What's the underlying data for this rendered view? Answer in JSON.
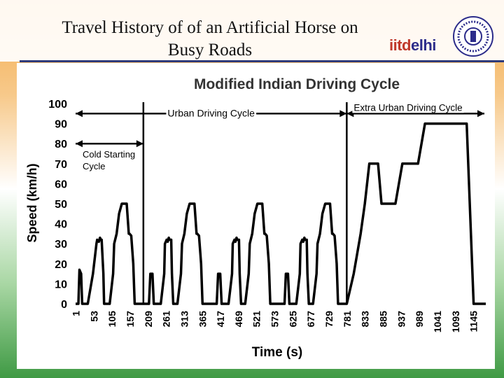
{
  "slide": {
    "title_line1": "Travel History of  of an Artificial Horse on",
    "title_line2": "Busy Roads",
    "logo_part1": "iitd",
    "logo_part2": "elhi"
  },
  "colors": {
    "accent": "#2e3a7a",
    "logo_red": "#c0392b",
    "logo_blue": "#2c2c8a",
    "trace": "#000000"
  },
  "chart_data": {
    "type": "line",
    "title": "Modified Indian Driving Cycle",
    "xlabel": "Time (s)",
    "ylabel": "Speed (km/h)",
    "ylim": [
      0,
      100
    ],
    "xlim": [
      0,
      1180
    ],
    "yticks": [
      0,
      10,
      20,
      30,
      40,
      50,
      60,
      70,
      80,
      90,
      100
    ],
    "xticks": [
      1,
      53,
      105,
      157,
      209,
      261,
      313,
      365,
      417,
      469,
      521,
      573,
      625,
      677,
      729,
      781,
      833,
      885,
      937,
      989,
      1041,
      1093,
      1145
    ],
    "grid": false,
    "annotations": {
      "urban": "Urban Driving Cycle",
      "extra_urban": "Extra Urban Driving Cycle",
      "cold": "Cold Starting",
      "cold2": "Cycle"
    },
    "markers": {
      "urban_start": 0,
      "urban_end": 780,
      "cold_end": 195,
      "extra_end": 1180
    },
    "series": [
      {
        "x": [
          0,
          8,
          11,
          16,
          19,
          23,
          35,
          50,
          60,
          62,
          67,
          70,
          73,
          75,
          80,
          82,
          86,
          98,
          108,
          111,
          118,
          125,
          133,
          140,
          147,
          153,
          155,
          160,
          166,
          170,
          178,
          182,
          190,
          195,
          205,
          211,
          215,
          221,
          225,
          245,
          255,
          257,
          262,
          265,
          268,
          270,
          275,
          277,
          281,
          293,
          303,
          306,
          313,
          320,
          328,
          335,
          342,
          348,
          350,
          355,
          361,
          365,
          373,
          377,
          385,
          390,
          400,
          406,
          410,
          416,
          420,
          440,
          450,
          452,
          457,
          460,
          463,
          465,
          470,
          472,
          476,
          488,
          498,
          501,
          508,
          515,
          523,
          530,
          537,
          543,
          545,
          550,
          556,
          560,
          568,
          572,
          580,
          585,
          595,
          601,
          605,
          611,
          615,
          635,
          645,
          647,
          652,
          655,
          658,
          660,
          665,
          667,
          671,
          683,
          693,
          696,
          703,
          710,
          718,
          725,
          732,
          738,
          740,
          745,
          751,
          755,
          763,
          767,
          775,
          780,
          800,
          820,
          832,
          845,
          855,
          870,
          880,
          900,
          920,
          940,
          950,
          960,
          975,
          985,
          1005,
          1020,
          1030,
          1045,
          1055,
          1080,
          1095,
          1110,
          1125,
          1145,
          1165,
          1180
        ],
        "y": [
          0,
          0,
          17,
          15,
          0,
          0,
          0,
          15,
          30,
          32,
          31,
          33,
          32,
          32,
          15,
          0,
          0,
          0,
          15,
          30,
          35,
          45,
          50,
          50,
          50,
          35,
          35,
          34,
          20,
          0,
          0,
          0,
          0,
          0,
          0,
          0,
          15,
          15,
          0,
          0,
          15,
          30,
          32,
          31,
          33,
          32,
          32,
          15,
          0,
          0,
          15,
          30,
          35,
          45,
          50,
          50,
          50,
          35,
          35,
          34,
          20,
          0,
          0,
          0,
          0,
          0,
          0,
          0,
          15,
          15,
          0,
          0,
          15,
          30,
          32,
          31,
          33,
          32,
          32,
          15,
          0,
          0,
          15,
          30,
          35,
          45,
          50,
          50,
          50,
          35,
          35,
          34,
          20,
          0,
          0,
          0,
          0,
          0,
          0,
          0,
          15,
          15,
          0,
          0,
          15,
          30,
          32,
          31,
          33,
          32,
          32,
          15,
          0,
          0,
          15,
          30,
          35,
          45,
          50,
          50,
          50,
          35,
          35,
          34,
          20,
          0,
          0,
          0,
          0,
          0,
          15,
          35,
          50,
          70,
          70,
          70,
          50,
          50,
          50,
          70,
          70,
          70,
          70,
          70,
          90,
          90,
          90,
          90,
          90,
          90,
          90,
          90,
          90,
          0,
          0,
          0
        ]
      }
    ]
  }
}
